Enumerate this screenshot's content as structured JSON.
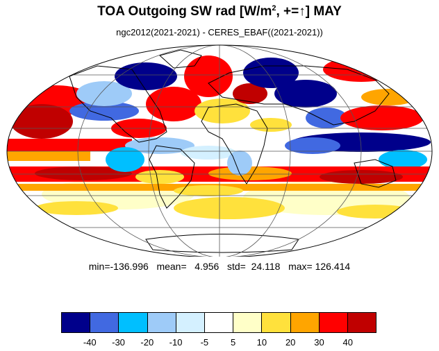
{
  "title": {
    "prefix": "TOA Outgoing SW rad [W/m",
    "sup": "2",
    "suffix": ", +=↑] MAY"
  },
  "subtitle": "ngc2012(2021-2021) - CERES_EBAF((2021-2021))",
  "stats": "min=-136.996   mean=   4.956   std=  24.118   max= 126.414",
  "colorbar": {
    "colors": [
      "#00008b",
      "#4169e1",
      "#00bfff",
      "#9ecbf8",
      "#d4f0ff",
      "#ffffff",
      "#ffffc8",
      "#ffe13c",
      "#ffa500",
      "#ff0000",
      "#c00000"
    ],
    "labels": [
      "-40",
      "-30",
      "-20",
      "-10",
      "-5",
      "5",
      "10",
      "20",
      "30",
      "40"
    ]
  }
}
